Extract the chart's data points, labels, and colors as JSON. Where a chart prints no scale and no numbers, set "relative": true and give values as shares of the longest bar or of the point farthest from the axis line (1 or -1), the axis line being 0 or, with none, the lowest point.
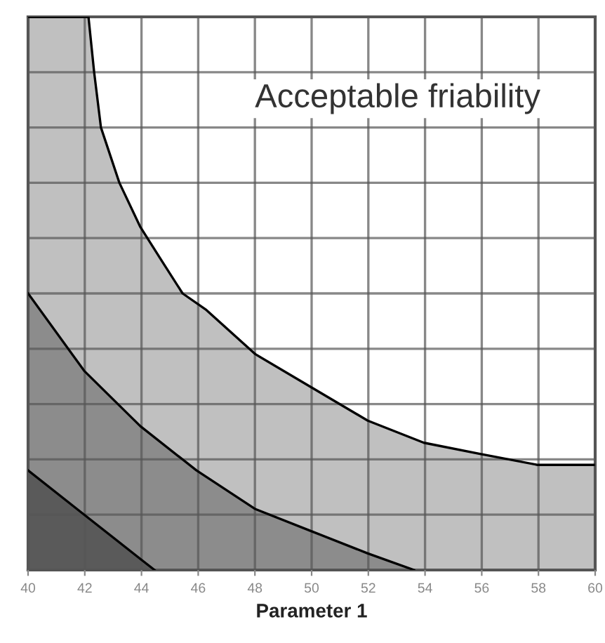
{
  "chart_data": {
    "type": "area",
    "relative": true,
    "xlabel": "Parameter 1",
    "annotations": [
      "Acceptable friability"
    ],
    "xlim": [
      40,
      60
    ],
    "xticks": [
      40,
      42,
      44,
      46,
      48,
      50,
      52,
      54,
      56,
      58,
      60
    ],
    "tick_labels": "x",
    "grid": true,
    "legend": false,
    "series": [
      {
        "color": "#c0c0c0",
        "x": [
          40,
          42.13,
          42.33,
          42.57,
          43.22,
          43.96,
          44.7,
          45.45,
          46.29,
          48.02,
          50.0,
          51.98,
          53.96,
          55.94,
          57.97,
          59.95
        ],
        "values": [
          1.0,
          1.0,
          0.9,
          0.8,
          0.7,
          0.62,
          0.56,
          0.5,
          0.47,
          0.39,
          0.33,
          0.27,
          0.23,
          0.21,
          0.19,
          0.19
        ]
      },
      {
        "color": "#8c8c8c",
        "x": [
          40,
          41.98,
          43.96,
          45.94,
          48.02,
          50.0,
          51.98,
          53.61
        ],
        "values": [
          0.5,
          0.36,
          0.26,
          0.18,
          0.11,
          0.07,
          0.03,
          0.0
        ]
      },
      {
        "color": "#5a5a5a",
        "x": [
          40,
          41.98,
          43.96,
          44.46
        ],
        "values": [
          0.18,
          0.1,
          0.02,
          0.0
        ]
      }
    ]
  }
}
